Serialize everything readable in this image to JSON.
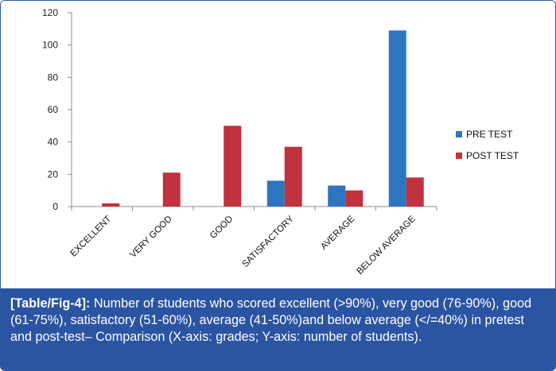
{
  "chart_data": {
    "type": "bar",
    "title": "",
    "xlabel": "",
    "ylabel": "",
    "ylim": [
      0,
      120
    ],
    "yticks": [
      0,
      20,
      40,
      60,
      80,
      100,
      120
    ],
    "grid": false,
    "legend_position": "right",
    "categories": [
      "EXCELLENT",
      "VERY GOOD",
      "GOOD",
      "SATISFACTORY",
      "AVERAGE",
      "BELOW AVERAGE"
    ],
    "series": [
      {
        "name": "PRE TEST",
        "color": "#2e75c0",
        "values": [
          0,
          0,
          0,
          16,
          13,
          109
        ]
      },
      {
        "name": "POST TEST",
        "color": "#c0323e",
        "values": [
          2,
          21,
          50,
          37,
          10,
          18
        ]
      }
    ]
  },
  "caption": {
    "tag": "[Table/Fig-4]:",
    "text": " Number of students who scored excellent (>90%), very good (76-90%), good (61-75%), satisfactory (51-60%), average (41-50%)and below average (</=40%) in pretest and post-test– Comparison (X-axis: grades; Y-axis: number of students)."
  },
  "colors": {
    "caption_background": "#2b54a2",
    "axis": "#8c8c8c"
  }
}
